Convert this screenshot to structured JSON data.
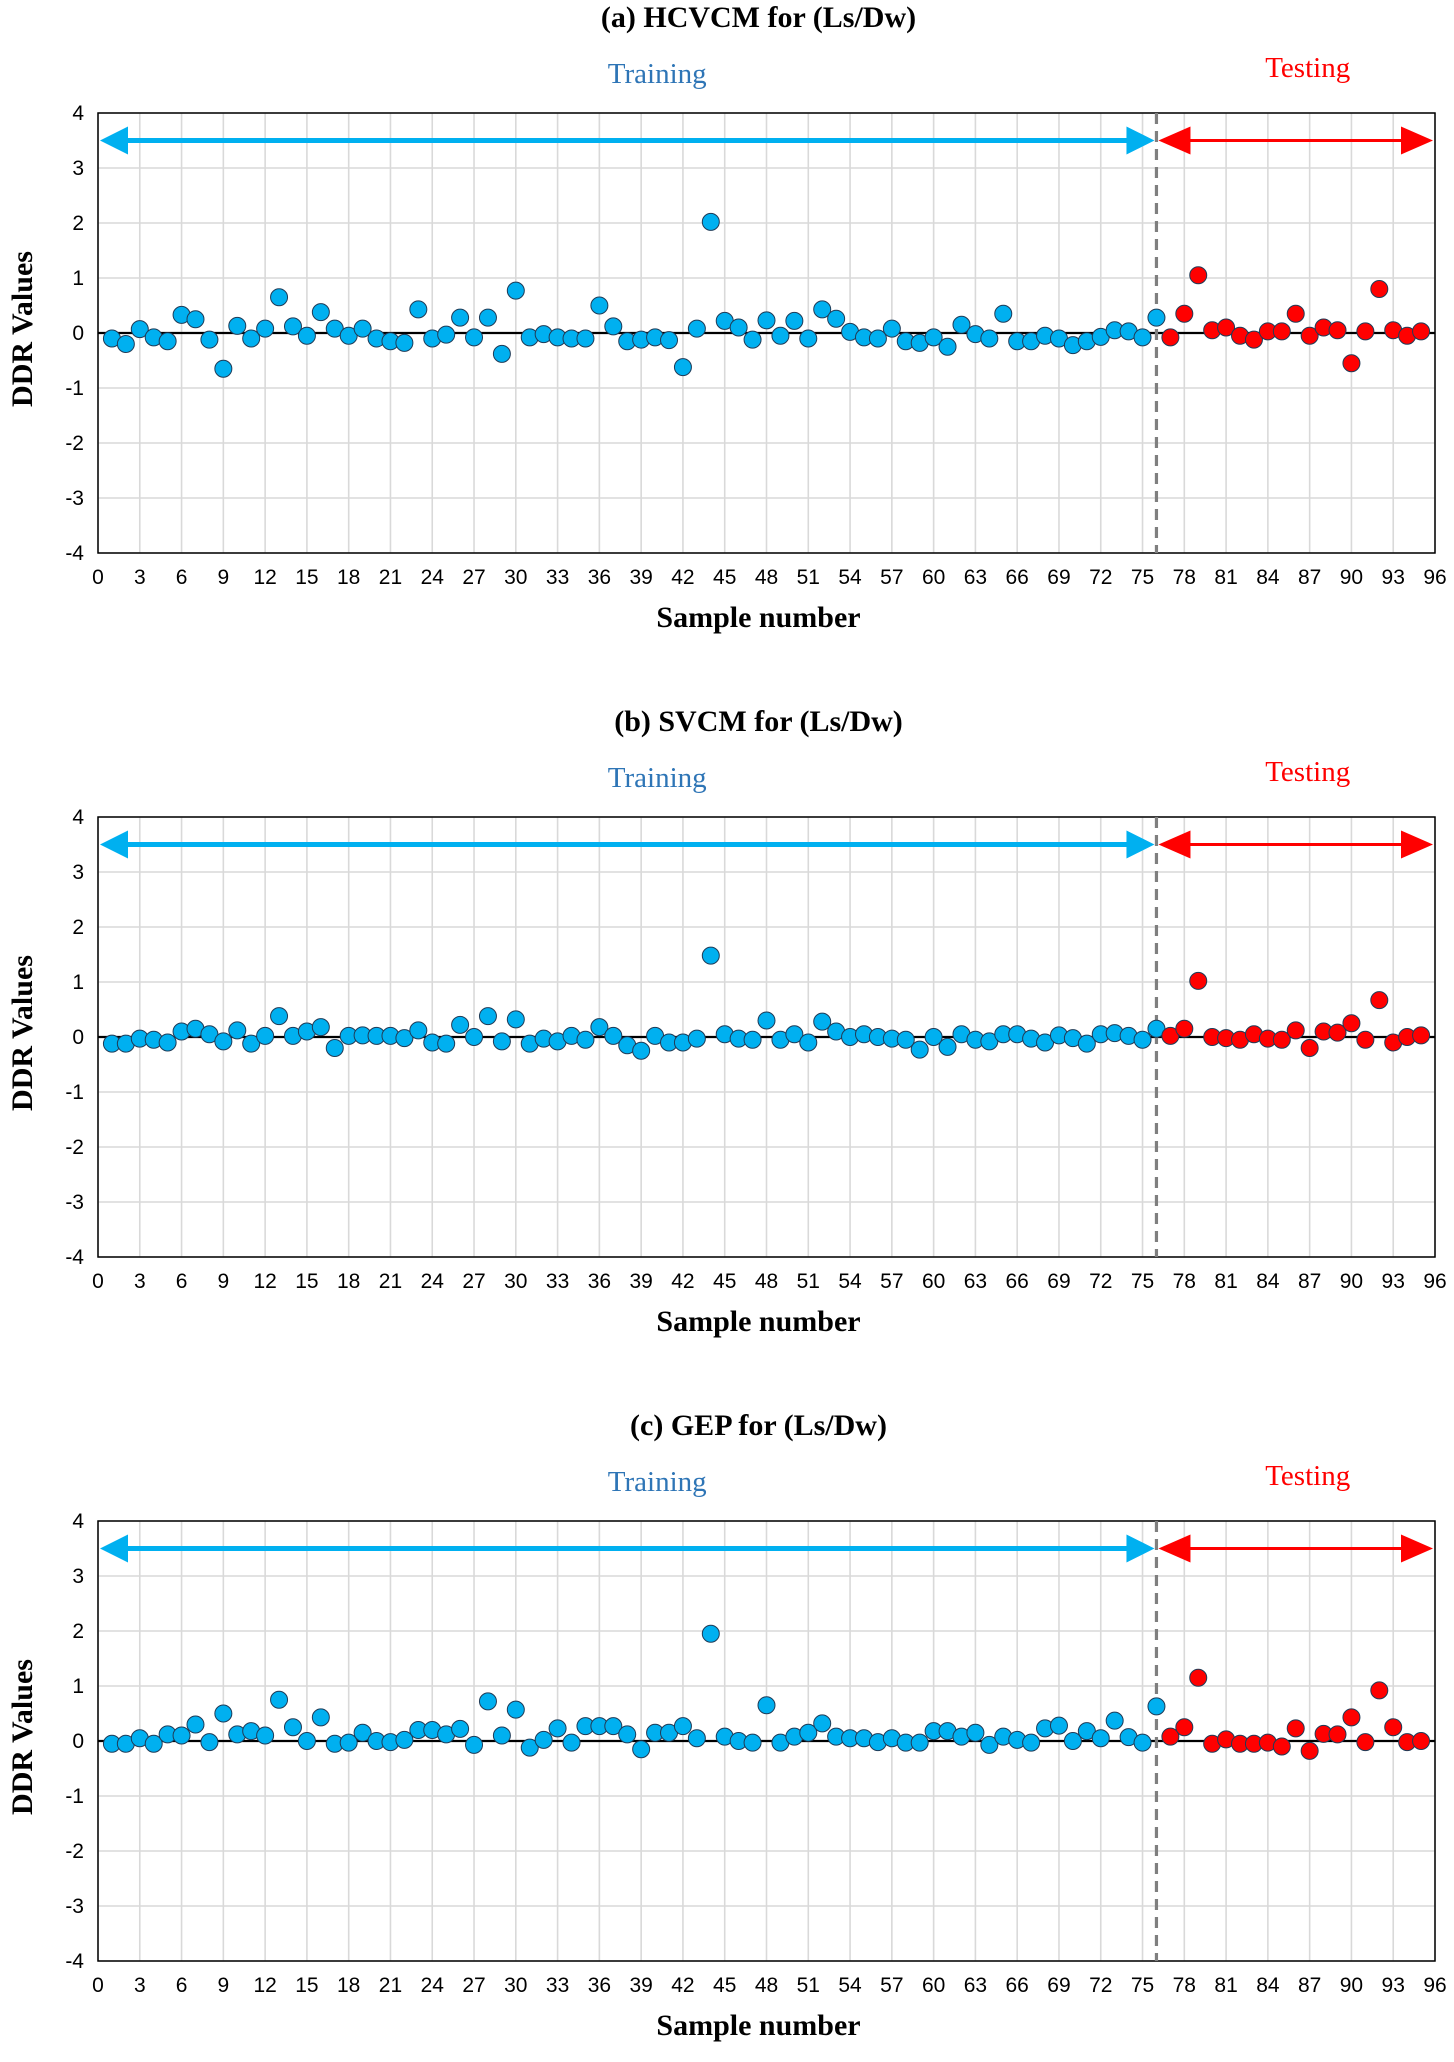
{
  "colors": {
    "training": "#00b0f0",
    "training_label": "#2e75b6",
    "testing": "#ff0000",
    "grid": "#d9d9d9",
    "divider": "#7f7f7f"
  },
  "chart_data": [
    {
      "type": "scatter",
      "title": "(a) HCVCM for (Ls/Dw)",
      "xlabel": "Sample number",
      "ylabel": "DDR Values",
      "xlim": [
        0,
        96
      ],
      "ylim": [
        -4,
        4
      ],
      "xticks": [
        0,
        3,
        6,
        9,
        12,
        15,
        18,
        21,
        24,
        27,
        30,
        33,
        36,
        39,
        42,
        45,
        48,
        51,
        54,
        57,
        60,
        63,
        66,
        69,
        72,
        75,
        78,
        81,
        84,
        87,
        90,
        93,
        96
      ],
      "xtick_labels": [
        "0",
        "3",
        "6",
        "9",
        "12",
        "15",
        "18",
        "21",
        "24",
        "27",
        "30",
        "33",
        "36",
        "39",
        "42",
        "45",
        "48",
        "51",
        "54",
        "57",
        "60",
        "63",
        "66",
        "69",
        "72",
        "75",
        "78",
        "81",
        "84",
        "87",
        "90",
        "93",
        "96"
      ],
      "yticks": [
        -4,
        -3,
        -2,
        -1,
        0,
        1,
        2,
        3,
        4
      ],
      "ytick_labels": [
        "-4",
        "-3",
        "-2",
        "-1",
        "0",
        "1",
        "2",
        "3",
        "4"
      ],
      "grid": true,
      "divider_x": 76,
      "arrow_y": 3.5,
      "annotations": [
        "Training",
        "Testing"
      ],
      "series": [
        {
          "name": "Training",
          "x": [
            1,
            2,
            3,
            4,
            5,
            6,
            7,
            8,
            9,
            10,
            11,
            12,
            13,
            14,
            15,
            16,
            17,
            18,
            19,
            20,
            21,
            22,
            23,
            24,
            25,
            26,
            27,
            28,
            29,
            30,
            31,
            32,
            33,
            34,
            35,
            36,
            37,
            38,
            39,
            40,
            41,
            42,
            43,
            44,
            45,
            46,
            47,
            48,
            49,
            50,
            51,
            52,
            53,
            54,
            55,
            56,
            57,
            58,
            59,
            60,
            61,
            62,
            63,
            64,
            65,
            66,
            67,
            68,
            69,
            70,
            71,
            72,
            73,
            74,
            75,
            76
          ],
          "y": [
            -0.1,
            -0.2,
            0.07,
            -0.08,
            -0.15,
            0.33,
            0.25,
            -0.12,
            -0.65,
            0.13,
            -0.1,
            0.08,
            0.65,
            0.12,
            -0.05,
            0.38,
            0.08,
            -0.05,
            0.08,
            -0.1,
            -0.15,
            -0.18,
            0.43,
            -0.1,
            -0.03,
            0.28,
            -0.08,
            0.28,
            -0.38,
            0.77,
            -0.08,
            -0.02,
            -0.08,
            -0.1,
            -0.1,
            0.5,
            0.12,
            -0.15,
            -0.12,
            -0.08,
            -0.13,
            -0.62,
            0.08,
            2.02,
            0.22,
            0.1,
            -0.12,
            0.23,
            -0.05,
            0.22,
            -0.1,
            0.43,
            0.26,
            0.02,
            -0.08,
            -0.1,
            0.08,
            -0.15,
            -0.18,
            -0.08,
            -0.25,
            0.15,
            -0.02,
            -0.1,
            0.35,
            -0.15,
            -0.15,
            -0.05,
            -0.1,
            -0.22,
            -0.15,
            -0.07,
            0.05,
            0.03,
            -0.08,
            0.28
          ]
        },
        {
          "name": "Testing",
          "x": [
            77,
            78,
            79,
            80,
            81,
            82,
            83,
            84,
            85,
            86,
            87,
            88,
            89,
            90,
            91,
            92,
            93,
            94,
            95
          ],
          "y": [
            -0.08,
            0.35,
            1.05,
            0.05,
            0.1,
            -0.05,
            -0.12,
            0.03,
            0.03,
            0.35,
            -0.05,
            0.1,
            0.05,
            -0.55,
            0.03,
            0.8,
            0.05,
            -0.05,
            0.03
          ]
        }
      ]
    },
    {
      "type": "scatter",
      "title": "(b) SVCM for (Ls/Dw)",
      "xlabel": "Sample number",
      "ylabel": "DDR Values",
      "xlim": [
        0,
        96
      ],
      "ylim": [
        -4,
        4
      ],
      "xticks": [
        0,
        3,
        6,
        9,
        12,
        15,
        18,
        21,
        24,
        27,
        30,
        33,
        36,
        39,
        42,
        45,
        48,
        51,
        54,
        57,
        60,
        63,
        66,
        69,
        72,
        75,
        78,
        81,
        84,
        87,
        90,
        93,
        96
      ],
      "xtick_labels": [
        "0",
        "3",
        "6",
        "9",
        "12",
        "15",
        "18",
        "21",
        "24",
        "27",
        "30",
        "33",
        "36",
        "39",
        "42",
        "45",
        "48",
        "51",
        "54",
        "57",
        "60",
        "63",
        "66",
        "69",
        "72",
        "75",
        "78",
        "81",
        "84",
        "87",
        "90",
        "93",
        "96"
      ],
      "yticks": [
        -4,
        -3,
        -2,
        -1,
        0,
        1,
        2,
        3,
        4
      ],
      "ytick_labels": [
        "-4",
        "-3",
        "-2",
        "-1",
        "0",
        "1",
        "2",
        "3",
        "4"
      ],
      "grid": true,
      "divider_x": 76,
      "arrow_y": 3.5,
      "annotations": [
        "Training",
        "Testing"
      ],
      "series": [
        {
          "name": "Training",
          "x": [
            1,
            2,
            3,
            4,
            5,
            6,
            7,
            8,
            9,
            10,
            11,
            12,
            13,
            14,
            15,
            16,
            17,
            18,
            19,
            20,
            21,
            22,
            23,
            24,
            25,
            26,
            27,
            28,
            29,
            30,
            31,
            32,
            33,
            34,
            35,
            36,
            37,
            38,
            39,
            40,
            41,
            42,
            43,
            44,
            45,
            46,
            47,
            48,
            49,
            50,
            51,
            52,
            53,
            54,
            55,
            56,
            57,
            58,
            59,
            60,
            61,
            62,
            63,
            64,
            65,
            66,
            67,
            68,
            69,
            70,
            71,
            72,
            73,
            74,
            75,
            76
          ],
          "y": [
            -0.12,
            -0.12,
            -0.03,
            -0.05,
            -0.1,
            0.1,
            0.15,
            0.05,
            -0.08,
            0.12,
            -0.12,
            0.02,
            0.38,
            0.02,
            0.1,
            0.18,
            -0.2,
            0.02,
            0.03,
            0.02,
            0.02,
            -0.02,
            0.12,
            -0.1,
            -0.12,
            0.22,
            0.0,
            0.38,
            -0.08,
            0.32,
            -0.12,
            -0.03,
            -0.08,
            0.02,
            -0.05,
            0.18,
            0.02,
            -0.15,
            -0.25,
            0.02,
            -0.1,
            -0.1,
            -0.03,
            1.48,
            0.05,
            -0.03,
            -0.05,
            0.3,
            -0.05,
            0.05,
            -0.1,
            0.28,
            0.1,
            0.0,
            0.05,
            0.0,
            -0.03,
            -0.05,
            -0.23,
            0.0,
            -0.18,
            0.05,
            -0.05,
            -0.08,
            0.05,
            0.05,
            -0.03,
            -0.1,
            0.03,
            -0.02,
            -0.12,
            0.05,
            0.07,
            0.02,
            -0.05,
            0.15
          ]
        },
        {
          "name": "Testing",
          "x": [
            77,
            78,
            79,
            80,
            81,
            82,
            83,
            84,
            85,
            86,
            87,
            88,
            89,
            90,
            91,
            92,
            93,
            94,
            95
          ],
          "y": [
            0.02,
            0.15,
            1.02,
            0.0,
            -0.02,
            -0.05,
            0.05,
            -0.03,
            -0.05,
            0.12,
            -0.2,
            0.1,
            0.08,
            0.25,
            -0.05,
            0.67,
            -0.1,
            0.0,
            0.03
          ]
        }
      ]
    },
    {
      "type": "scatter",
      "title": "(c) GEP for (Ls/Dw)",
      "xlabel": "Sample number",
      "ylabel": "DDR Values",
      "xlim": [
        0,
        96
      ],
      "ylim": [
        -4,
        4
      ],
      "xticks": [
        0,
        3,
        6,
        9,
        12,
        15,
        18,
        21,
        24,
        27,
        30,
        33,
        36,
        39,
        42,
        45,
        48,
        51,
        54,
        57,
        60,
        63,
        66,
        69,
        72,
        75,
        78,
        81,
        84,
        87,
        90,
        93,
        96
      ],
      "xtick_labels": [
        "0",
        "3",
        "6",
        "9",
        "12",
        "15",
        "18",
        "21",
        "24",
        "27",
        "30",
        "33",
        "36",
        "39",
        "42",
        "45",
        "48",
        "51",
        "54",
        "57",
        "60",
        "63",
        "66",
        "69",
        "72",
        "75",
        "78",
        "81",
        "84",
        "87",
        "90",
        "93",
        "96"
      ],
      "yticks": [
        -4,
        -3,
        -2,
        -1,
        0,
        1,
        2,
        3,
        4
      ],
      "ytick_labels": [
        "-4",
        "-3",
        "-2",
        "-1",
        "0",
        "1",
        "2",
        "3",
        "4"
      ],
      "grid": true,
      "divider_x": 76,
      "arrow_y": 3.5,
      "annotations": [
        "Training",
        "Testing"
      ],
      "series": [
        {
          "name": "Training",
          "x": [
            1,
            2,
            3,
            4,
            5,
            6,
            7,
            8,
            9,
            10,
            11,
            12,
            13,
            14,
            15,
            16,
            17,
            18,
            19,
            20,
            21,
            22,
            23,
            24,
            25,
            26,
            27,
            28,
            29,
            30,
            31,
            32,
            33,
            34,
            35,
            36,
            37,
            38,
            39,
            40,
            41,
            42,
            43,
            44,
            45,
            46,
            47,
            48,
            49,
            50,
            51,
            52,
            53,
            54,
            55,
            56,
            57,
            58,
            59,
            60,
            61,
            62,
            63,
            64,
            65,
            66,
            67,
            68,
            69,
            70,
            71,
            72,
            73,
            74,
            75,
            76
          ],
          "y": [
            -0.05,
            -0.05,
            0.05,
            -0.05,
            0.12,
            0.1,
            0.3,
            -0.02,
            0.5,
            0.12,
            0.18,
            0.1,
            0.75,
            0.25,
            0.0,
            0.43,
            -0.05,
            -0.03,
            0.15,
            0.0,
            -0.02,
            0.02,
            0.2,
            0.2,
            0.12,
            0.22,
            -0.07,
            0.72,
            0.1,
            0.57,
            -0.12,
            0.02,
            0.23,
            -0.03,
            0.27,
            0.27,
            0.27,
            0.12,
            -0.15,
            0.15,
            0.15,
            0.27,
            0.05,
            1.95,
            0.08,
            0.0,
            -0.03,
            0.65,
            -0.03,
            0.08,
            0.15,
            0.32,
            0.08,
            0.05,
            0.05,
            -0.02,
            0.05,
            -0.03,
            -0.03,
            0.18,
            0.18,
            0.08,
            0.15,
            -0.07,
            0.08,
            0.02,
            -0.03,
            0.23,
            0.28,
            0.0,
            0.18,
            0.05,
            0.37,
            0.07,
            -0.03,
            0.63
          ]
        },
        {
          "name": "Testing",
          "x": [
            77,
            78,
            79,
            80,
            81,
            82,
            83,
            84,
            85,
            86,
            87,
            88,
            89,
            90,
            91,
            92,
            93,
            94,
            95
          ],
          "y": [
            0.08,
            0.25,
            1.15,
            -0.05,
            0.03,
            -0.05,
            -0.05,
            -0.03,
            -0.1,
            0.23,
            -0.18,
            0.13,
            0.12,
            0.43,
            -0.02,
            0.92,
            0.25,
            -0.02,
            0.0
          ]
        }
      ]
    }
  ]
}
